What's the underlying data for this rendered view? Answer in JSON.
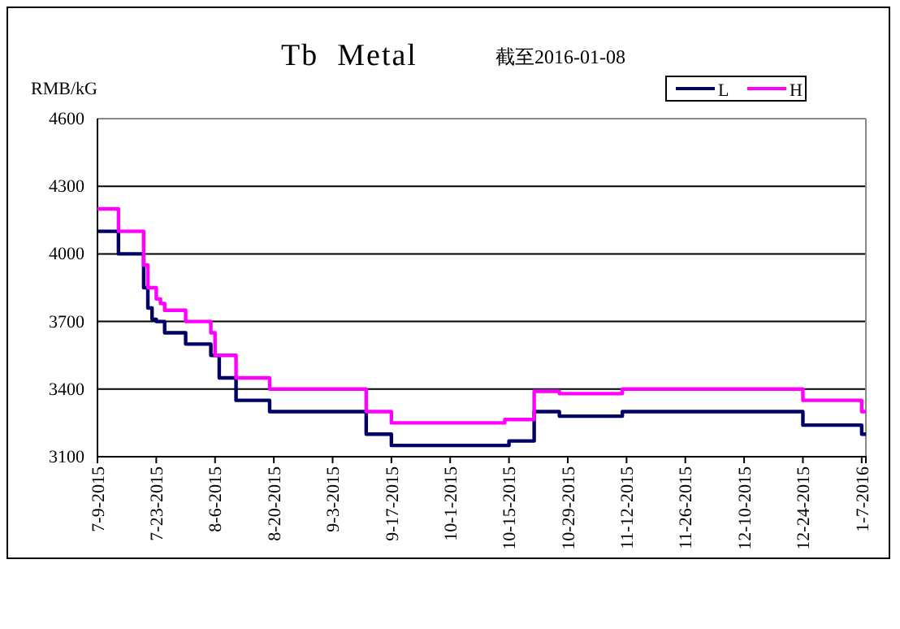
{
  "chart_data": {
    "type": "step",
    "title": "Tb  Metal",
    "subtitle": "截至2016-01-08",
    "ylabel": "RMB/kG",
    "xlim": [
      "2015-07-09",
      "2016-01-08"
    ],
    "xticks": [
      {
        "value": "2015-07-09",
        "label": "7-9-2015"
      },
      {
        "value": "2015-07-23",
        "label": "7-23-2015"
      },
      {
        "value": "2015-08-06",
        "label": "8-6-2015"
      },
      {
        "value": "2015-08-20",
        "label": "8-20-2015"
      },
      {
        "value": "2015-09-03",
        "label": "9-3-2015"
      },
      {
        "value": "2015-09-17",
        "label": "9-17-2015"
      },
      {
        "value": "2015-10-01",
        "label": "10-1-2015"
      },
      {
        "value": "2015-10-15",
        "label": "10-15-2015"
      },
      {
        "value": "2015-10-29",
        "label": "10-29-2015"
      },
      {
        "value": "2015-11-12",
        "label": "11-12-2015"
      },
      {
        "value": "2015-11-26",
        "label": "11-26-2015"
      },
      {
        "value": "2015-12-10",
        "label": "12-10-2015"
      },
      {
        "value": "2015-12-24",
        "label": "12-24-2015"
      },
      {
        "value": "2016-01-07",
        "label": "1-7-2016"
      }
    ],
    "ylim": [
      3100,
      4600
    ],
    "yticks": [
      3100,
      3400,
      3700,
      4000,
      4300,
      4600
    ],
    "grid": "y",
    "legend": "top right",
    "marker": "none",
    "line_style": "solid",
    "series": [
      {
        "name": "L",
        "color": "#000066",
        "x": [
          "2015-07-09",
          "2015-07-14",
          "2015-07-20",
          "2015-07-21",
          "2015-07-22",
          "2015-07-23",
          "2015-07-25",
          "2015-07-30",
          "2015-08-05",
          "2015-08-07",
          "2015-08-11",
          "2015-08-19",
          "2015-09-11",
          "2015-09-17",
          "2015-10-15",
          "2015-10-21",
          "2015-10-27",
          "2015-11-11",
          "2015-12-24",
          "2016-01-07",
          "2016-01-08"
        ],
        "values": [
          4100,
          4000,
          3850,
          3760,
          3710,
          3700,
          3650,
          3600,
          3550,
          3450,
          3350,
          3300,
          3200,
          3150,
          3170,
          3300,
          3280,
          3300,
          3240,
          3200,
          3200
        ]
      },
      {
        "name": "H",
        "color": "#ff00ff",
        "x": [
          "2015-07-09",
          "2015-07-14",
          "2015-07-20",
          "2015-07-21",
          "2015-07-23",
          "2015-07-24",
          "2015-07-25",
          "2015-07-30",
          "2015-08-05",
          "2015-08-06",
          "2015-08-11",
          "2015-08-19",
          "2015-09-11",
          "2015-09-17",
          "2015-10-14",
          "2015-10-21",
          "2015-10-27",
          "2015-11-11",
          "2015-12-24",
          "2016-01-07",
          "2016-01-08"
        ],
        "values": [
          4200,
          4100,
          3950,
          3850,
          3800,
          3780,
          3750,
          3700,
          3650,
          3550,
          3450,
          3400,
          3300,
          3250,
          3265,
          3390,
          3380,
          3400,
          3350,
          3300,
          3300
        ]
      }
    ]
  }
}
